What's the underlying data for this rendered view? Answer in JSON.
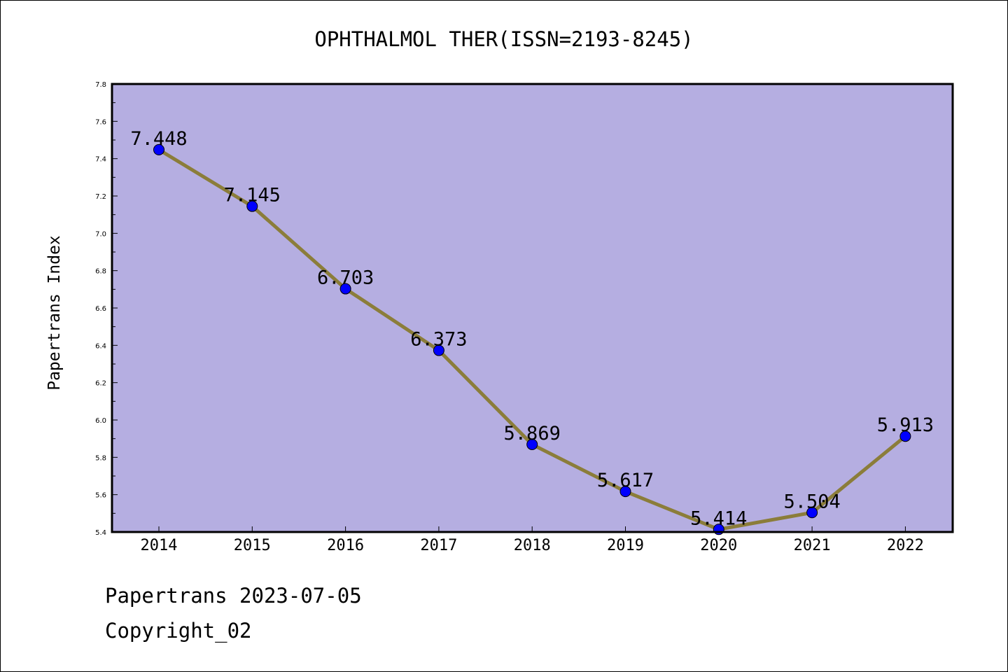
{
  "chart_data": {
    "type": "line",
    "title": "OPHTHALMOL THER(ISSN=2193-8245)",
    "ylabel": "Papertrans Index",
    "xlabel": "",
    "categories": [
      "2014",
      "2015",
      "2016",
      "2017",
      "2018",
      "2019",
      "2020",
      "2021",
      "2022"
    ],
    "values": [
      7.448,
      7.145,
      6.703,
      6.373,
      5.869,
      5.617,
      5.414,
      5.504,
      5.913
    ],
    "data_labels": [
      "7.448",
      "7.145",
      "6.703",
      "6.373",
      "5.869",
      "5.617",
      "5.414",
      "5.504",
      "5.913"
    ],
    "ylim": [
      5.4,
      7.8
    ],
    "yticks": [
      "5.4",
      "5.6",
      "5.8",
      "6.0",
      "6.2",
      "6.4",
      "6.6",
      "6.8",
      "7.0",
      "7.2",
      "7.4",
      "7.6",
      "7.8"
    ],
    "grid": false,
    "colors": {
      "plot_background": "#b5aee1",
      "line": "#8b7d3a",
      "marker": "#0000ff"
    }
  },
  "footer": {
    "line1": "Papertrans 2023-07-05",
    "line2": "Copyright_02"
  }
}
